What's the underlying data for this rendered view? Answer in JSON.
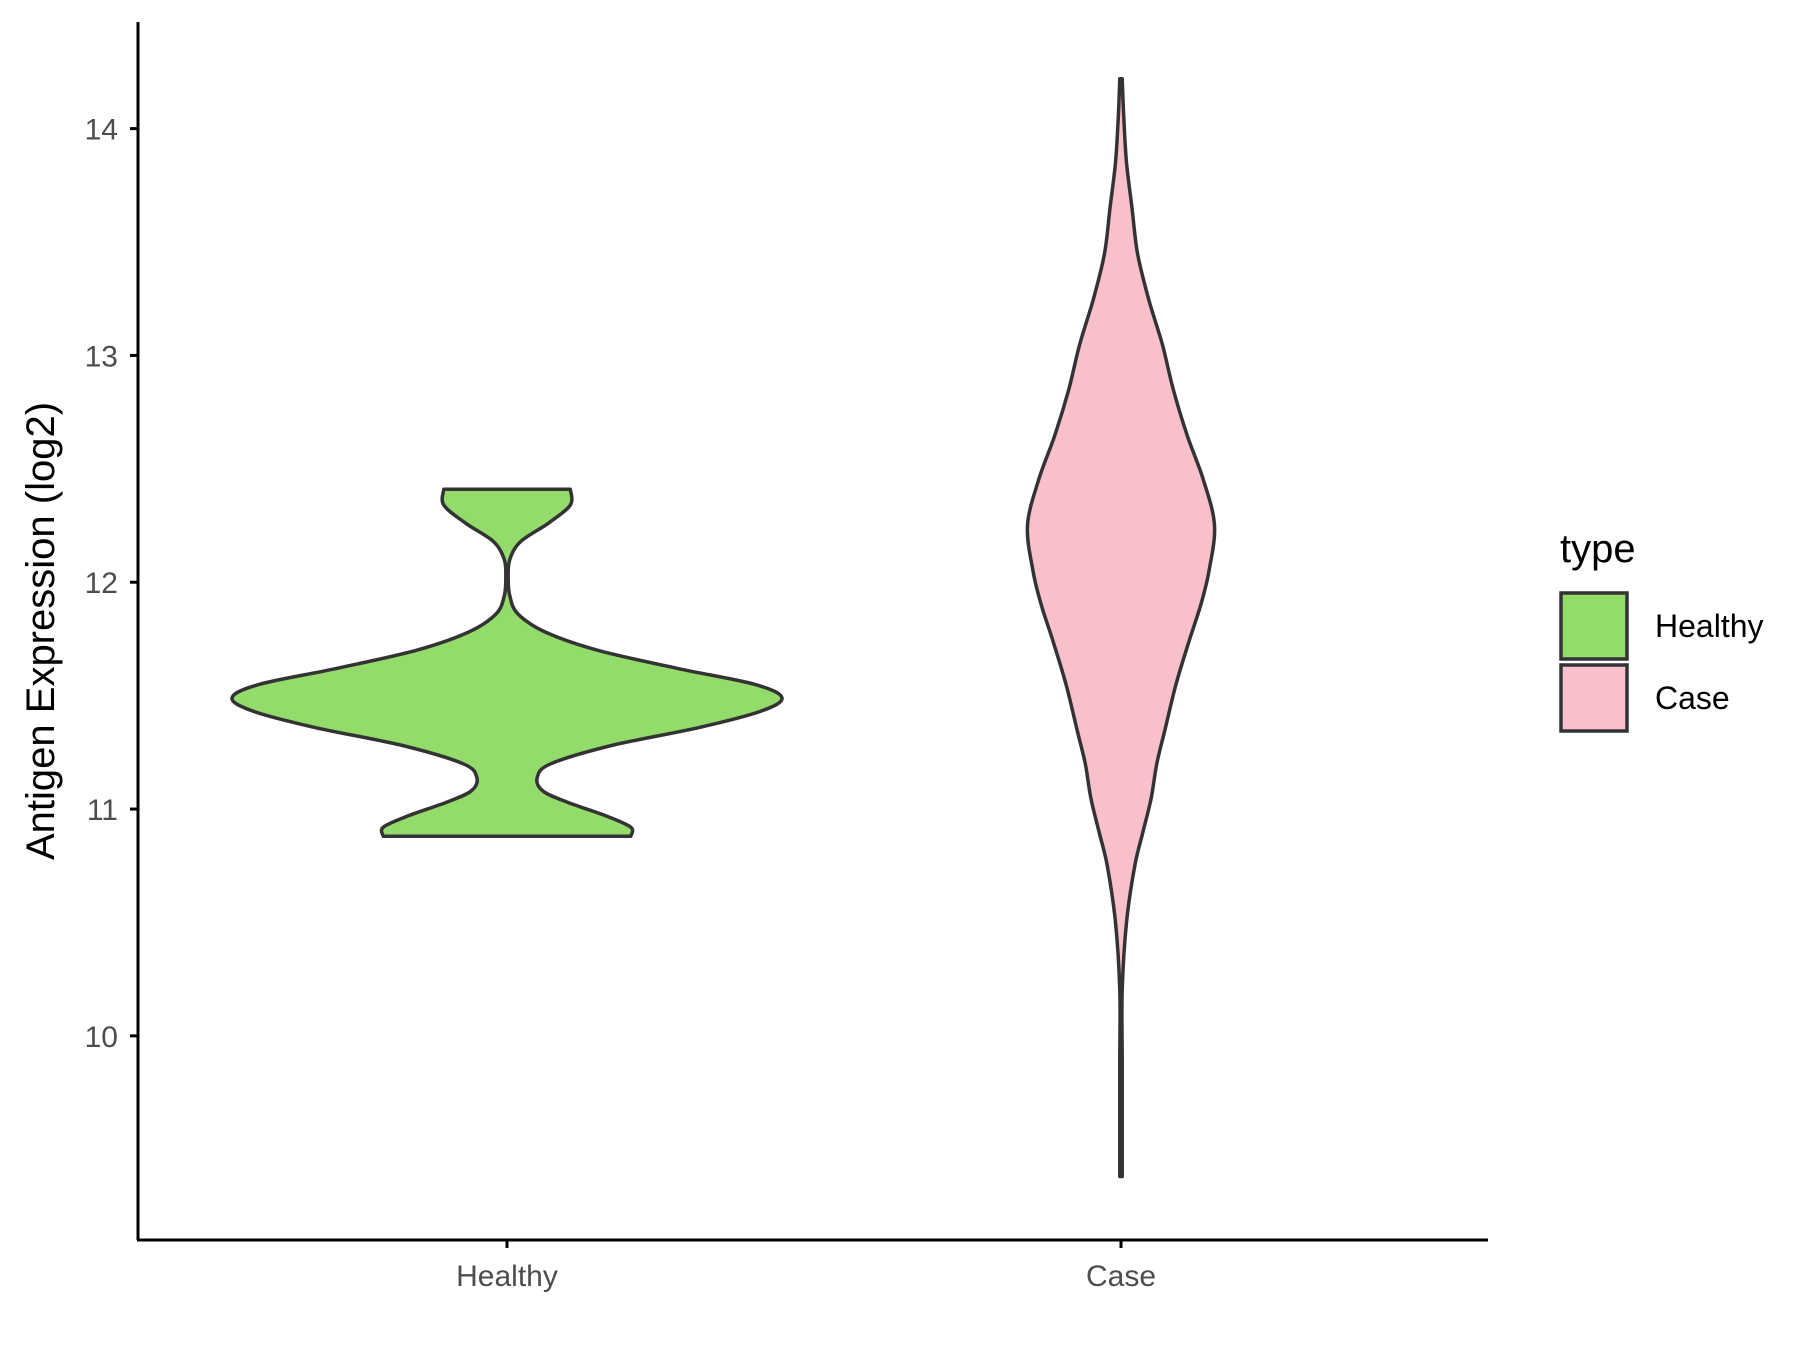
{
  "chart_data": {
    "type": "violin",
    "title": "",
    "xlabel": "",
    "ylabel": "Antigen Expression (log2)",
    "ylim": [
      9.1,
      14.47
    ],
    "y_ticks": [
      10,
      11,
      12,
      13,
      14
    ],
    "categories": [
      "Healthy",
      "Case"
    ],
    "grid": false,
    "legend": {
      "title": "type",
      "position": "right",
      "entries": [
        {
          "label": "Healthy",
          "color": "#93dc6b"
        },
        {
          "label": "Case",
          "color": "#f8c0cb"
        }
      ]
    },
    "series": [
      {
        "category": "Healthy",
        "color": "#93dc6b",
        "min": 10.88,
        "max": 12.41,
        "density": [
          [
            10.88,
            0.45
          ],
          [
            10.92,
            0.45
          ],
          [
            10.97,
            0.36
          ],
          [
            11.03,
            0.22
          ],
          [
            11.08,
            0.13
          ],
          [
            11.14,
            0.11
          ],
          [
            11.2,
            0.16
          ],
          [
            11.28,
            0.38
          ],
          [
            11.36,
            0.7
          ],
          [
            11.43,
            0.92
          ],
          [
            11.49,
            1.0
          ],
          [
            11.55,
            0.9
          ],
          [
            11.62,
            0.62
          ],
          [
            11.7,
            0.33
          ],
          [
            11.78,
            0.14
          ],
          [
            11.86,
            0.04
          ],
          [
            11.94,
            0.01
          ],
          [
            12.02,
            0.0
          ],
          [
            12.1,
            0.01
          ],
          [
            12.18,
            0.05
          ],
          [
            12.26,
            0.15
          ],
          [
            12.34,
            0.23
          ],
          [
            12.41,
            0.23
          ]
        ]
      },
      {
        "category": "Case",
        "color": "#f8c0cb",
        "min": 9.38,
        "max": 14.22,
        "density": [
          [
            9.38,
            0.0
          ],
          [
            9.6,
            0.0
          ],
          [
            9.9,
            0.0
          ],
          [
            10.2,
            0.0
          ],
          [
            10.5,
            0.02
          ],
          [
            10.75,
            0.05
          ],
          [
            10.9,
            0.08
          ],
          [
            11.05,
            0.11
          ],
          [
            11.2,
            0.13
          ],
          [
            11.35,
            0.16
          ],
          [
            11.55,
            0.2
          ],
          [
            11.75,
            0.25
          ],
          [
            11.9,
            0.29
          ],
          [
            12.05,
            0.32
          ],
          [
            12.25,
            0.34
          ],
          [
            12.45,
            0.3
          ],
          [
            12.65,
            0.24
          ],
          [
            12.85,
            0.19
          ],
          [
            13.05,
            0.15
          ],
          [
            13.25,
            0.1
          ],
          [
            13.45,
            0.06
          ],
          [
            13.65,
            0.04
          ],
          [
            13.85,
            0.02
          ],
          [
            14.05,
            0.01
          ],
          [
            14.22,
            0.0
          ]
        ]
      }
    ]
  }
}
